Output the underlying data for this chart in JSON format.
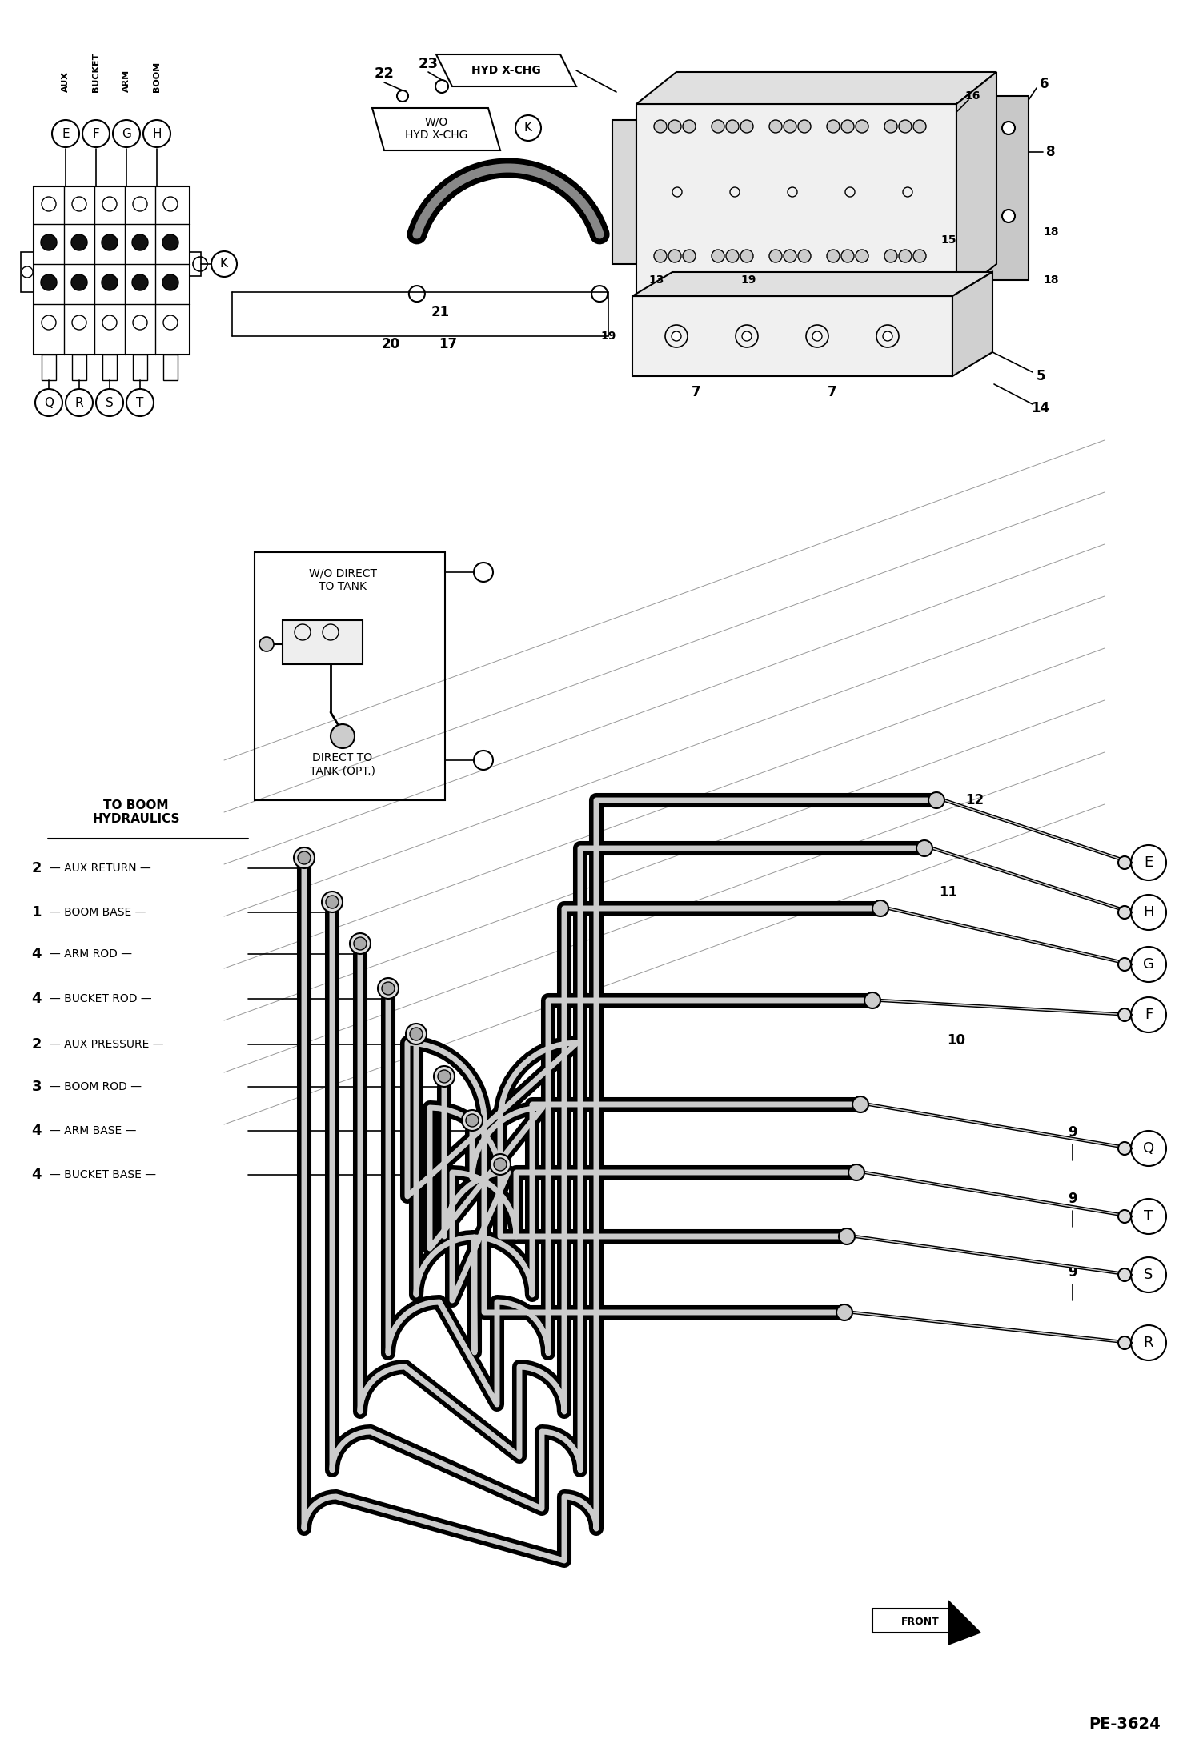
{
  "page_id": "PE-3624",
  "background_color": "#ffffff",
  "figsize": [
    14.98,
    21.93
  ],
  "dpi": 100,
  "labels": {
    "boom_hydraulics": "TO BOOM\nHYDRAULICS",
    "aux_return": "AUX RETURN",
    "boom_base": "BOOM BASE",
    "arm_rod": "ARM ROD",
    "bucket_rod": "BUCKET ROD",
    "aux_pressure": "AUX PRESSURE",
    "boom_rod": "BOOM ROD",
    "arm_base": "ARM BASE",
    "bucket_base": "BUCKET BASE",
    "wo_direct_tank": "W/O DIRECT\nTO TANK",
    "direct_tank": "DIRECT TO\nTANK (OPT.)",
    "wo_hyd_xchg": "W/O\nHYD X-CHG",
    "hyd_xchg": "HYD X-CHG",
    "front": "FRONT",
    "aux": "AUX",
    "bucket": "BUCKET",
    "arm": "ARM",
    "boom": "BOOM"
  },
  "hose_labels": [
    [
      "2",
      "AUX RETURN",
      1085
    ],
    [
      "1",
      "BOOM BASE",
      1140
    ],
    [
      "4",
      "ARM ROD",
      1192
    ],
    [
      "4",
      "BUCKET ROD",
      1248
    ],
    [
      "2",
      "AUX PRESSURE",
      1305
    ],
    [
      "3",
      "BOOM ROD",
      1358
    ],
    [
      "4",
      "ARM BASE",
      1413
    ],
    [
      "4",
      "BUCKET BASE",
      1468
    ]
  ],
  "right_circles_top": [
    [
      "E",
      1435,
      1078
    ],
    [
      "H",
      1435,
      1140
    ],
    [
      "G",
      1435,
      1205
    ],
    [
      "F",
      1435,
      1268
    ]
  ],
  "right_circles_bot": [
    [
      "Q",
      1435,
      1435
    ],
    [
      "T",
      1435,
      1520
    ],
    [
      "S",
      1435,
      1593
    ],
    [
      "R",
      1435,
      1678
    ]
  ]
}
